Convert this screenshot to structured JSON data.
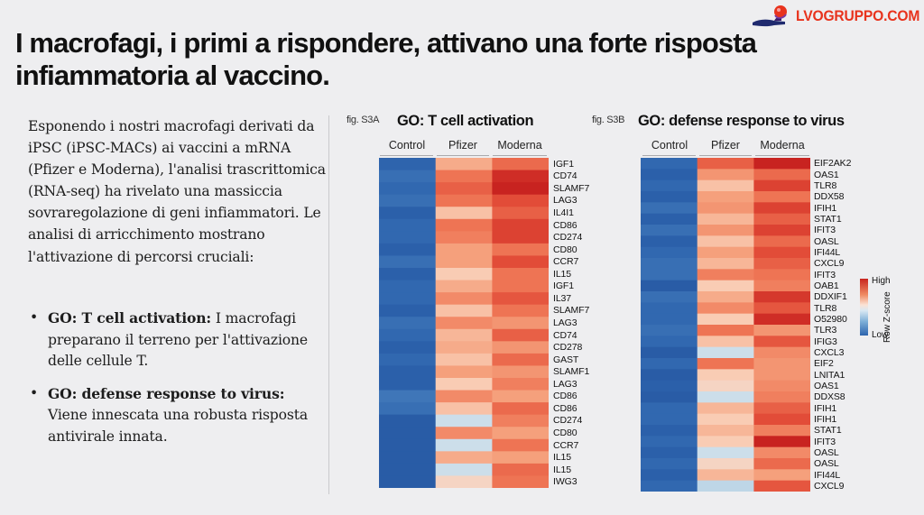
{
  "brand": {
    "name": "LVOGRUPPO.COM",
    "logo_icon": "hand-holding-ball-icon",
    "color": "#e8331d"
  },
  "title": "I macrofagi, i primi a rispondere, attivano una forte risposta infiammatoria al vaccino.",
  "intro": "Esponendo i nostri macrofagi derivati da iPSC (iPSC-MACs) ai vaccini a mRNA (Pfizer e Moderna), l'analisi trascrittomica (RNA-seq) ha rivelato una massiccia sovraregolazione di geni infiammatori. Le analisi di arricchimento mostrano l'attivazione di percorsi cruciali:",
  "bullets": [
    {
      "bold": "GO: T cell activation:",
      "text": " I macrofagi preparano il terreno per l'attivazione delle cellule T."
    },
    {
      "bold": "GO: defense response to virus:",
      "text": " Viene innescata una robusta risposta antivirale innata."
    }
  ],
  "legend": {
    "high": "High",
    "low": "Low",
    "axis_label": "Row Z-score",
    "high_color": "#c8251f",
    "low_color": "#2d64ad"
  },
  "chart_data": [
    {
      "type": "heatmap",
      "fig_label": "fig. S3A",
      "title": "GO: T cell activation",
      "columns": [
        "Control",
        "Pfizer",
        "Moderna"
      ],
      "rows": [
        "IGF1",
        "CD74",
        "SLAMF7",
        "LAG3",
        "IL4I1",
        "CD86",
        "CD274",
        "CD80",
        "CCR7",
        "IL15",
        "IGF1",
        "IL37",
        "SLAMF7",
        "LAG3",
        "CD74",
        "CD278",
        "GAST",
        "SLAMF1",
        "LAG3",
        "CD86",
        "CD86",
        "CD274",
        "CD80",
        "CCR7",
        "IL15",
        "IL15",
        "IWG3"
      ],
      "values": [
        [
          -1.6,
          0.7,
          1.3
        ],
        [
          -1.4,
          1.2,
          1.9
        ],
        [
          -1.5,
          1.4,
          2.0
        ],
        [
          -1.4,
          1.2,
          1.6
        ],
        [
          -1.7,
          0.5,
          1.4
        ],
        [
          -1.5,
          1.2,
          1.7
        ],
        [
          -1.5,
          1.1,
          1.7
        ],
        [
          -1.7,
          0.8,
          1.2
        ],
        [
          -1.4,
          0.8,
          1.6
        ],
        [
          -1.7,
          0.4,
          1.2
        ],
        [
          -1.5,
          0.7,
          1.2
        ],
        [
          -1.5,
          1.0,
          1.5
        ],
        [
          -1.7,
          0.5,
          1.2
        ],
        [
          -1.4,
          1.0,
          0.9
        ],
        [
          -1.5,
          0.6,
          1.4
        ],
        [
          -1.7,
          0.7,
          0.9
        ],
        [
          -1.5,
          0.5,
          1.3
        ],
        [
          -1.7,
          0.8,
          0.9
        ],
        [
          -1.7,
          0.4,
          1.1
        ],
        [
          -1.3,
          1.0,
          0.8
        ],
        [
          -1.4,
          0.5,
          1.3
        ],
        [
          -1.8,
          -0.2,
          1.1
        ],
        [
          -1.8,
          1.0,
          0.8
        ],
        [
          -1.8,
          -0.2,
          1.2
        ],
        [
          -1.8,
          0.7,
          0.8
        ],
        [
          -1.8,
          -0.2,
          1.3
        ],
        [
          -1.8,
          0.3,
          1.2
        ]
      ],
      "color_range": [
        -2,
        2
      ]
    },
    {
      "type": "heatmap",
      "fig_label": "fig. S3B",
      "title": "GO: defense response to virus",
      "columns": [
        "Control",
        "Pfizer",
        "Moderna"
      ],
      "rows": [
        "EIF2AK2",
        "OAS1",
        "TLR8",
        "DDX58",
        "IFIH1",
        "STAT1",
        "IFIT3",
        "OASL",
        "IFI44L",
        "CXCL9",
        "IFIT3",
        "OAB1",
        "DDXIF1",
        "TLR8",
        "O52980",
        "TLR3",
        "IFIG3",
        "CXCL3",
        "EIF2",
        "LNITA1",
        "OAS1",
        "DDXS8",
        "IFIH1",
        "IFIH1",
        "STAT1",
        "IFIT3",
        "OASL",
        "OASL",
        "IFI44L",
        "CXCL9"
      ],
      "values": [
        [
          -1.5,
          1.4,
          2.0
        ],
        [
          -1.7,
          0.9,
          1.3
        ],
        [
          -1.5,
          0.5,
          1.7
        ],
        [
          -1.7,
          0.8,
          1.2
        ],
        [
          -1.4,
          0.9,
          1.7
        ],
        [
          -1.7,
          0.6,
          1.4
        ],
        [
          -1.4,
          0.9,
          1.7
        ],
        [
          -1.7,
          0.5,
          1.3
        ],
        [
          -1.5,
          0.8,
          1.6
        ],
        [
          -1.4,
          0.6,
          1.4
        ],
        [
          -1.4,
          1.1,
          1.2
        ],
        [
          -1.8,
          0.4,
          1.1
        ],
        [
          -1.4,
          0.7,
          1.8
        ],
        [
          -1.5,
          1.0,
          1.5
        ],
        [
          -1.5,
          0.4,
          1.9
        ],
        [
          -1.4,
          1.2,
          0.9
        ],
        [
          -1.5,
          0.5,
          1.5
        ],
        [
          -1.8,
          -0.2,
          1.0
        ],
        [
          -1.5,
          1.2,
          0.9
        ],
        [
          -1.8,
          0.4,
          0.9
        ],
        [
          -1.7,
          0.3,
          1.0
        ],
        [
          -1.8,
          -0.2,
          1.1
        ],
        [
          -1.5,
          0.6,
          1.4
        ],
        [
          -1.5,
          0.4,
          1.6
        ],
        [
          -1.7,
          0.6,
          1.1
        ],
        [
          -1.5,
          0.4,
          2.0
        ],
        [
          -1.7,
          -0.2,
          1.0
        ],
        [
          -1.5,
          0.3,
          1.3
        ],
        [
          -1.7,
          0.6,
          0.8
        ],
        [
          -1.5,
          -0.3,
          1.5
        ]
      ],
      "color_range": [
        -2,
        2
      ]
    }
  ]
}
